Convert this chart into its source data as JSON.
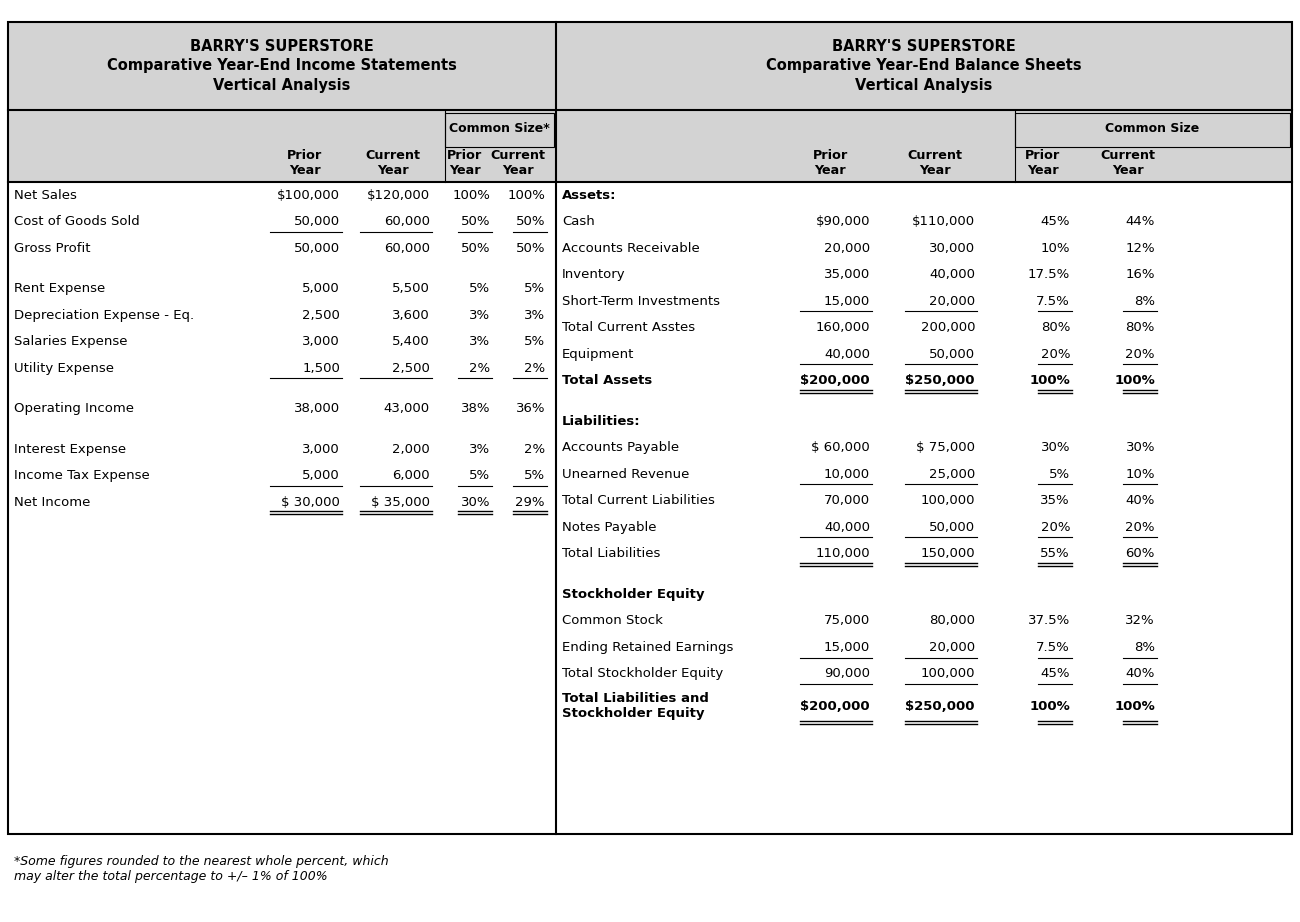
{
  "left_title": "BARRY'S SUPERSTORE\nComparative Year-End Income Statements\nVertical Analysis",
  "right_title": "BARRY'S SUPERSTORE\nComparative Year-End Balance Sheets\nVertical Analysis",
  "left_common_size_header": "Common Size*",
  "right_common_size_header": "Common Size",
  "left_rows": [
    {
      "label": "Net Sales",
      "prior": "$100,000",
      "current": "$120,000",
      "prior_pct": "100%",
      "current_pct": "100%",
      "ul_prior": false,
      "ul_current": false,
      "bold": false,
      "spacer": false
    },
    {
      "label": "Cost of Goods Sold",
      "prior": "50,000",
      "current": "60,000",
      "prior_pct": "50%",
      "current_pct": "50%",
      "ul_prior": true,
      "ul_current": true,
      "bold": false,
      "spacer": false
    },
    {
      "label": "Gross Profit",
      "prior": "50,000",
      "current": "60,000",
      "prior_pct": "50%",
      "current_pct": "50%",
      "ul_prior": false,
      "ul_current": false,
      "bold": false,
      "spacer": true
    },
    {
      "label": "Rent Expense",
      "prior": "5,000",
      "current": "5,500",
      "prior_pct": "5%",
      "current_pct": "5%",
      "ul_prior": false,
      "ul_current": false,
      "bold": false,
      "spacer": false
    },
    {
      "label": "Depreciation Expense - Eq.",
      "prior": "2,500",
      "current": "3,600",
      "prior_pct": "3%",
      "current_pct": "3%",
      "ul_prior": false,
      "ul_current": false,
      "bold": false,
      "spacer": false
    },
    {
      "label": "Salaries Expense",
      "prior": "3,000",
      "current": "5,400",
      "prior_pct": "3%",
      "current_pct": "5%",
      "ul_prior": false,
      "ul_current": false,
      "bold": false,
      "spacer": false
    },
    {
      "label": "Utility Expense",
      "prior": "1,500",
      "current": "2,500",
      "prior_pct": "2%",
      "current_pct": "2%",
      "ul_prior": true,
      "ul_current": true,
      "bold": false,
      "spacer": true
    },
    {
      "label": "Operating Income",
      "prior": "38,000",
      "current": "43,000",
      "prior_pct": "38%",
      "current_pct": "36%",
      "ul_prior": false,
      "ul_current": false,
      "bold": false,
      "spacer": true
    },
    {
      "label": "Interest Expense",
      "prior": "3,000",
      "current": "2,000",
      "prior_pct": "3%",
      "current_pct": "2%",
      "ul_prior": false,
      "ul_current": false,
      "bold": false,
      "spacer": false
    },
    {
      "label": "Income Tax Expense",
      "prior": "5,000",
      "current": "6,000",
      "prior_pct": "5%",
      "current_pct": "5%",
      "ul_prior": true,
      "ul_current": true,
      "bold": false,
      "spacer": false
    },
    {
      "label": "Net Income",
      "prior": "$ 30,000",
      "current": "$ 35,000",
      "prior_pct": "30%",
      "current_pct": "29%",
      "ul_prior": false,
      "ul_current": false,
      "bold": false,
      "spacer": false,
      "double_ul": true
    }
  ],
  "right_rows": [
    {
      "label": "Assets:",
      "prior": "",
      "current": "",
      "prior_pct": "",
      "current_pct": "",
      "bold": true,
      "ul_prior": false,
      "ul_current": false,
      "spacer": false
    },
    {
      "label": "Cash",
      "prior": "$90,000",
      "current": "$110,000",
      "prior_pct": "45%",
      "current_pct": "44%",
      "bold": false,
      "ul_prior": false,
      "ul_current": false,
      "spacer": false
    },
    {
      "label": "Accounts Receivable",
      "prior": "20,000",
      "current": "30,000",
      "prior_pct": "10%",
      "current_pct": "12%",
      "bold": false,
      "ul_prior": false,
      "ul_current": false,
      "spacer": false
    },
    {
      "label": "Inventory",
      "prior": "35,000",
      "current": "40,000",
      "prior_pct": "17.5%",
      "current_pct": "16%",
      "bold": false,
      "ul_prior": false,
      "ul_current": false,
      "spacer": false
    },
    {
      "label": "Short-Term Investments",
      "prior": "15,000",
      "current": "20,000",
      "prior_pct": "7.5%",
      "current_pct": "8%",
      "bold": false,
      "ul_prior": true,
      "ul_current": true,
      "spacer": false
    },
    {
      "label": "Total Current Asstes",
      "prior": "160,000",
      "current": "200,000",
      "prior_pct": "80%",
      "current_pct": "80%",
      "bold": false,
      "ul_prior": false,
      "ul_current": false,
      "spacer": false
    },
    {
      "label": "Equipment",
      "prior": "40,000",
      "current": "50,000",
      "prior_pct": "20%",
      "current_pct": "20%",
      "bold": false,
      "ul_prior": true,
      "ul_current": true,
      "spacer": false
    },
    {
      "label": "Total Assets",
      "prior": "$200,000",
      "current": "$250,000",
      "prior_pct": "100%",
      "current_pct": "100%",
      "bold": true,
      "ul_prior": false,
      "ul_current": false,
      "spacer": true,
      "double_ul": true
    },
    {
      "label": "Liabilities:",
      "prior": "",
      "current": "",
      "prior_pct": "",
      "current_pct": "",
      "bold": true,
      "ul_prior": false,
      "ul_current": false,
      "spacer": false
    },
    {
      "label": "Accounts Payable",
      "prior": "$ 60,000",
      "current": "$ 75,000",
      "prior_pct": "30%",
      "current_pct": "30%",
      "bold": false,
      "ul_prior": false,
      "ul_current": false,
      "spacer": false
    },
    {
      "label": "Unearned Revenue",
      "prior": "10,000",
      "current": "25,000",
      "prior_pct": "5%",
      "current_pct": "10%",
      "bold": false,
      "ul_prior": true,
      "ul_current": true,
      "spacer": false
    },
    {
      "label": "Total Current Liabilities",
      "prior": "70,000",
      "current": "100,000",
      "prior_pct": "35%",
      "current_pct": "40%",
      "bold": false,
      "ul_prior": false,
      "ul_current": false,
      "spacer": false
    },
    {
      "label": "Notes Payable",
      "prior": "40,000",
      "current": "50,000",
      "prior_pct": "20%",
      "current_pct": "20%",
      "bold": false,
      "ul_prior": true,
      "ul_current": true,
      "spacer": false
    },
    {
      "label": "Total Liabilities",
      "prior": "110,000",
      "current": "150,000",
      "prior_pct": "55%",
      "current_pct": "60%",
      "bold": false,
      "ul_prior": false,
      "ul_current": false,
      "spacer": true,
      "double_ul": true
    },
    {
      "label": "Stockholder Equity",
      "prior": "",
      "current": "",
      "prior_pct": "",
      "current_pct": "",
      "bold": true,
      "ul_prior": false,
      "ul_current": false,
      "spacer": false
    },
    {
      "label": "Common Stock",
      "prior": "75,000",
      "current": "80,000",
      "prior_pct": "37.5%",
      "current_pct": "32%",
      "bold": false,
      "ul_prior": false,
      "ul_current": false,
      "spacer": false
    },
    {
      "label": "Ending Retained Earnings",
      "prior": "15,000",
      "current": "20,000",
      "prior_pct": "7.5%",
      "current_pct": "8%",
      "bold": false,
      "ul_prior": true,
      "ul_current": true,
      "spacer": false
    },
    {
      "label": "Total Stockholder Equity",
      "prior": "90,000",
      "current": "100,000",
      "prior_pct": "45%",
      "current_pct": "40%",
      "bold": false,
      "ul_prior": false,
      "ul_current": false,
      "spacer": false,
      "single_ul": true
    },
    {
      "label": "Total Liabilities and\nStockholder Equity",
      "prior": "$200,000",
      "current": "$250,000",
      "prior_pct": "100%",
      "current_pct": "100%",
      "bold": true,
      "ul_prior": false,
      "ul_current": false,
      "spacer": false,
      "double_ul": true,
      "multiline": true
    }
  ],
  "footnote": "*Some figures rounded to the nearest whole percent, which\nmay alter the total percentage to +/– 1% of 100%",
  "bg_color": "#d3d3d3",
  "white_bg": "#ffffff"
}
